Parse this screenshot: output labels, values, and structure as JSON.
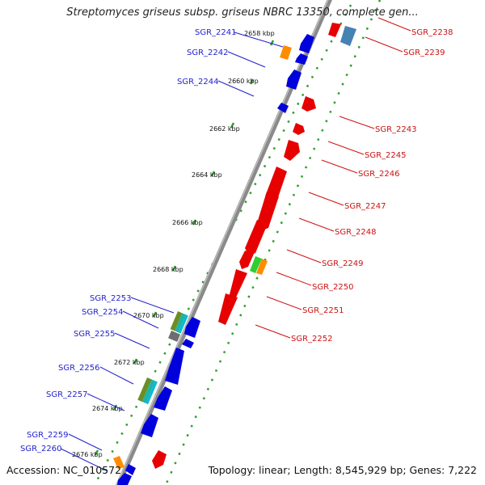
{
  "title": "Streptomyces griseus subsp. griseus NBRC 13350, complete gen...",
  "footer": {
    "accession": "Accession: NC_010572",
    "summary": "Topology: linear; Length: 8,545,929 bp; Genes: 7,222"
  },
  "colors": {
    "axis": "#8a8a8a",
    "dotted_track": "#2e9e2e",
    "forward_gene": "#e60000",
    "reverse_gene": "#0000dd",
    "left_label": "#1f1fcc",
    "right_label": "#cc1111"
  },
  "scale_labels": [
    "2658 kbp",
    "2660 kbp",
    "2662 kbp",
    "2664 kbp",
    "2666 kbp",
    "2668 kbp",
    "2670 kbp",
    "2672 kbp",
    "2674 kbp",
    "2676 kbp"
  ],
  "left_genes": [
    "SGR_2241",
    "SGR_2242",
    "SGR_2244",
    "SGR_2253",
    "SGR_2254",
    "SGR_2255",
    "SGR_2256",
    "SGR_2257",
    "SGR_2259",
    "SGR_2260"
  ],
  "right_genes": [
    "SGR_2238",
    "SGR_2239",
    "SGR_2243",
    "SGR_2245",
    "SGR_2246",
    "SGR_2247",
    "SGR_2248",
    "SGR_2249",
    "SGR_2250",
    "SGR_2251",
    "SGR_2252"
  ]
}
